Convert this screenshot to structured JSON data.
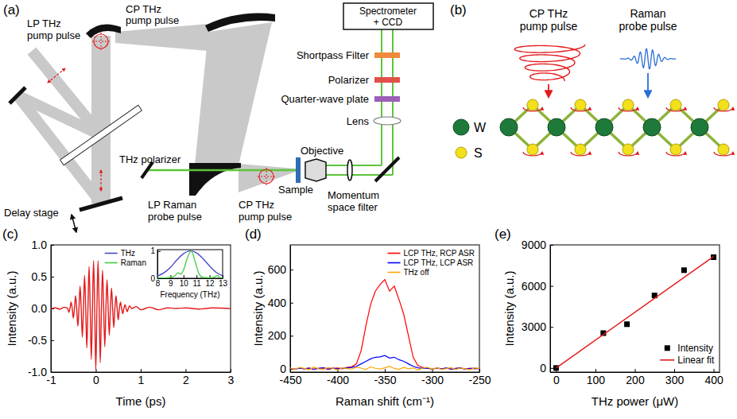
{
  "diagram_a": {
    "panel_label": "(a)",
    "labels": {
      "lp_thz_pump": [
        "LP THz",
        "pump pulse"
      ],
      "cp_thz_pump_top": [
        "CP THz",
        "pump pulse"
      ],
      "thz_polarizer": [
        "THz polarizer"
      ],
      "delay_stage": [
        "Delay stage"
      ],
      "lp_raman_probe": [
        "LP Raman",
        "probe pulse"
      ],
      "cp_thz_pump_bottom": [
        "CP THz",
        "pump pulse"
      ],
      "sample": [
        "Sample"
      ],
      "objective": [
        "Objective"
      ],
      "momentum_filter": [
        "Momentum",
        "space filter"
      ],
      "lens": [
        "Lens"
      ],
      "quarter_wave_plate": [
        "Quarter-wave plate"
      ],
      "polarizer": [
        "Polarizer"
      ],
      "shortpass_filter": [
        "Shortpass Filter"
      ],
      "spectrometer": [
        "Spectrometer",
        "+ CCD"
      ]
    }
  },
  "diagram_b": {
    "panel_label": "(b)",
    "cp_thz_pump": [
      "CP THz",
      "pump pulse"
    ],
    "raman_probe": [
      "Raman",
      "probe pulse"
    ],
    "atoms": [
      "W",
      "S"
    ]
  },
  "chart_data": [
    {
      "panel_label": "(c)",
      "type": "line",
      "x_label": "Time (ps)",
      "y_label": "Intensity (a.u.)",
      "xlim": [
        -1,
        3
      ],
      "xticks": [
        -1,
        0,
        1,
        2,
        3
      ],
      "ylim": [
        -1,
        1
      ],
      "yticks": [
        {
          "value": -1,
          "label": "-1.0"
        },
        {
          "value": -0.5,
          "label": "-0.5"
        },
        {
          "value": 0,
          "label": "0.0"
        },
        {
          "value": 0.5,
          "label": "0.5"
        },
        {
          "value": 1,
          "label": "1.0"
        }
      ],
      "color": "#e41a1c",
      "x": [
        -1,
        -0.9,
        -0.8,
        -0.7,
        -0.65,
        -0.625,
        -0.6,
        -0.575,
        -0.55,
        -0.525,
        -0.5,
        -0.475,
        -0.45,
        -0.425,
        -0.4,
        -0.375,
        -0.35,
        -0.325,
        -0.3,
        -0.275,
        -0.25,
        -0.225,
        -0.2,
        -0.175,
        -0.15,
        -0.125,
        -0.1,
        -0.075,
        -0.05,
        -0.025,
        0,
        0.025,
        0.05,
        0.075,
        0.1,
        0.125,
        0.15,
        0.175,
        0.2,
        0.225,
        0.25,
        0.275,
        0.3,
        0.325,
        0.35,
        0.375,
        0.4,
        0.425,
        0.45,
        0.475,
        0.5,
        0.525,
        0.55,
        0.575,
        0.6,
        0.625,
        0.65,
        0.675,
        0.7,
        0.725,
        0.75,
        0.8,
        0.9,
        1,
        1.2,
        1.4,
        1.6,
        1.8,
        2,
        2.3,
        2.6,
        3
      ],
      "values": [
        0,
        0.01,
        -0.01,
        0.02,
        0.01,
        0,
        -0.06,
        0,
        0.1,
        0,
        -0.15,
        0,
        0.2,
        0,
        -0.28,
        0,
        0.35,
        0,
        -0.45,
        0,
        0.52,
        0,
        -0.62,
        0,
        0.66,
        0,
        -0.8,
        0,
        0.75,
        0,
        -0.97,
        0,
        0.75,
        0,
        -0.85,
        0,
        0.6,
        0,
        -0.6,
        0,
        0.45,
        0,
        -0.42,
        0,
        0.32,
        0,
        -0.3,
        0,
        0.2,
        0,
        -0.18,
        0,
        0.1,
        0,
        -0.08,
        0,
        0.06,
        0,
        -0.05,
        0,
        0.04,
        0,
        0.03,
        -0.02,
        0.02,
        -0.02,
        0.01,
        0,
        0.01,
        -0.01,
        0.01,
        0
      ]
    },
    {
      "type": "line",
      "x_label": "Frequency (THz)",
      "xlim": [
        8,
        13
      ],
      "xticks": [
        8,
        9,
        10,
        11,
        12,
        13
      ],
      "ylim": [
        0,
        1.05
      ],
      "yticks": [
        0,
        1
      ],
      "legend": "left",
      "series": [
        {
          "name": "THz",
          "color": "#4646c8",
          "x": [
            8,
            8.5,
            9,
            9.5,
            10,
            10.5,
            11,
            11.5,
            12,
            12.5,
            13
          ],
          "values": [
            0.08,
            0.2,
            0.4,
            0.68,
            0.9,
            1,
            0.93,
            0.72,
            0.45,
            0.22,
            0.09
          ]
        },
        {
          "name": "Raman",
          "color": "#3ccf3c",
          "x": [
            8,
            8.5,
            9,
            9.3,
            9.6,
            9.8,
            10,
            10.3,
            10.6,
            10.9,
            11.2,
            11.5,
            12,
            12.4,
            12.6,
            12.8,
            13
          ],
          "values": [
            0,
            0.01,
            0.03,
            0.08,
            0.2,
            0.15,
            0.3,
            0.75,
            1,
            0.6,
            0.15,
            0.03,
            0.02,
            0.05,
            0.1,
            0.03,
            0
          ]
        }
      ]
    },
    {
      "panel_label": "(d)",
      "type": "line",
      "x_label": "Raman shift (cm⁻¹)",
      "y_label": "Intensity (a.u.)",
      "xlim": [
        -450,
        -250
      ],
      "xticks": [
        -450,
        -400,
        -350,
        -300,
        -250
      ],
      "ylim": [
        -20,
        750
      ],
      "yticks": [
        0,
        200,
        400,
        600
      ],
      "legend": "top-right",
      "x": [
        -450,
        -445,
        -440,
        -435,
        -430,
        -425,
        -420,
        -415,
        -410,
        -405,
        -400,
        -395,
        -390,
        -385,
        -380,
        -375,
        -370,
        -365,
        -360,
        -355,
        -350,
        -345,
        -340,
        -335,
        -330,
        -325,
        -320,
        -315,
        -310,
        -305,
        -300,
        -295,
        -290,
        -285,
        -280,
        -275,
        -270,
        -265,
        -260,
        -255,
        -250
      ],
      "series": [
        {
          "name": "LCP THz, RCP ASR",
          "color": "#ff0000",
          "values": [
            2,
            -3,
            4,
            0,
            5,
            -2,
            3,
            6,
            -4,
            2,
            5,
            0,
            8,
            12,
            30,
            110,
            260,
            390,
            470,
            510,
            540,
            470,
            500,
            420,
            330,
            200,
            70,
            20,
            8,
            3,
            -2,
            5,
            0,
            4,
            -3,
            2,
            6,
            -1,
            3,
            0,
            2
          ]
        },
        {
          "name": "LCP THz, LCP ASR",
          "color": "#0000ff",
          "values": [
            3,
            -2,
            5,
            0,
            4,
            -3,
            2,
            6,
            -1,
            4,
            0,
            3,
            5,
            8,
            15,
            30,
            45,
            60,
            70,
            72,
            80,
            65,
            70,
            55,
            45,
            30,
            15,
            6,
            2,
            4,
            -2,
            3,
            0,
            5,
            -1,
            2,
            4,
            -3,
            1,
            3,
            0
          ]
        },
        {
          "name": "THz off",
          "color": "#ffa500",
          "values": [
            5,
            -3,
            8,
            2,
            -6,
            10,
            0,
            -4,
            7,
            3,
            -8,
            6,
            1,
            -2,
            9,
            4,
            -5,
            12,
            3,
            -1,
            6,
            15,
            2,
            -4,
            8,
            0,
            5,
            -7,
            3,
            10,
            -2,
            6,
            -4,
            1,
            7,
            -3,
            4,
            0,
            -6,
            5,
            2
          ]
        }
      ]
    },
    {
      "panel_label": "(e)",
      "type": "scatter",
      "x_label": "THz power (μW)",
      "y_label": "Intensity (a.u.)",
      "xlim": [
        -15,
        415
      ],
      "xticks": [
        0,
        100,
        200,
        300,
        400
      ],
      "ylim": [
        -300,
        9000
      ],
      "yticks": [
        0,
        3000,
        6000,
        9000
      ],
      "legend": "bottom-right",
      "series": [
        {
          "name": "Intensity",
          "type": "scatter",
          "marker": "square",
          "color": "#000000",
          "x": [
            0,
            120,
            180,
            250,
            325,
            400
          ],
          "values": [
            0,
            2550,
            3200,
            5300,
            7150,
            8100
          ]
        },
        {
          "name": "Linear fit",
          "type": "line",
          "color": "#e41a1c",
          "x": [
            0,
            400
          ],
          "values": [
            0,
            8150
          ]
        }
      ]
    }
  ]
}
